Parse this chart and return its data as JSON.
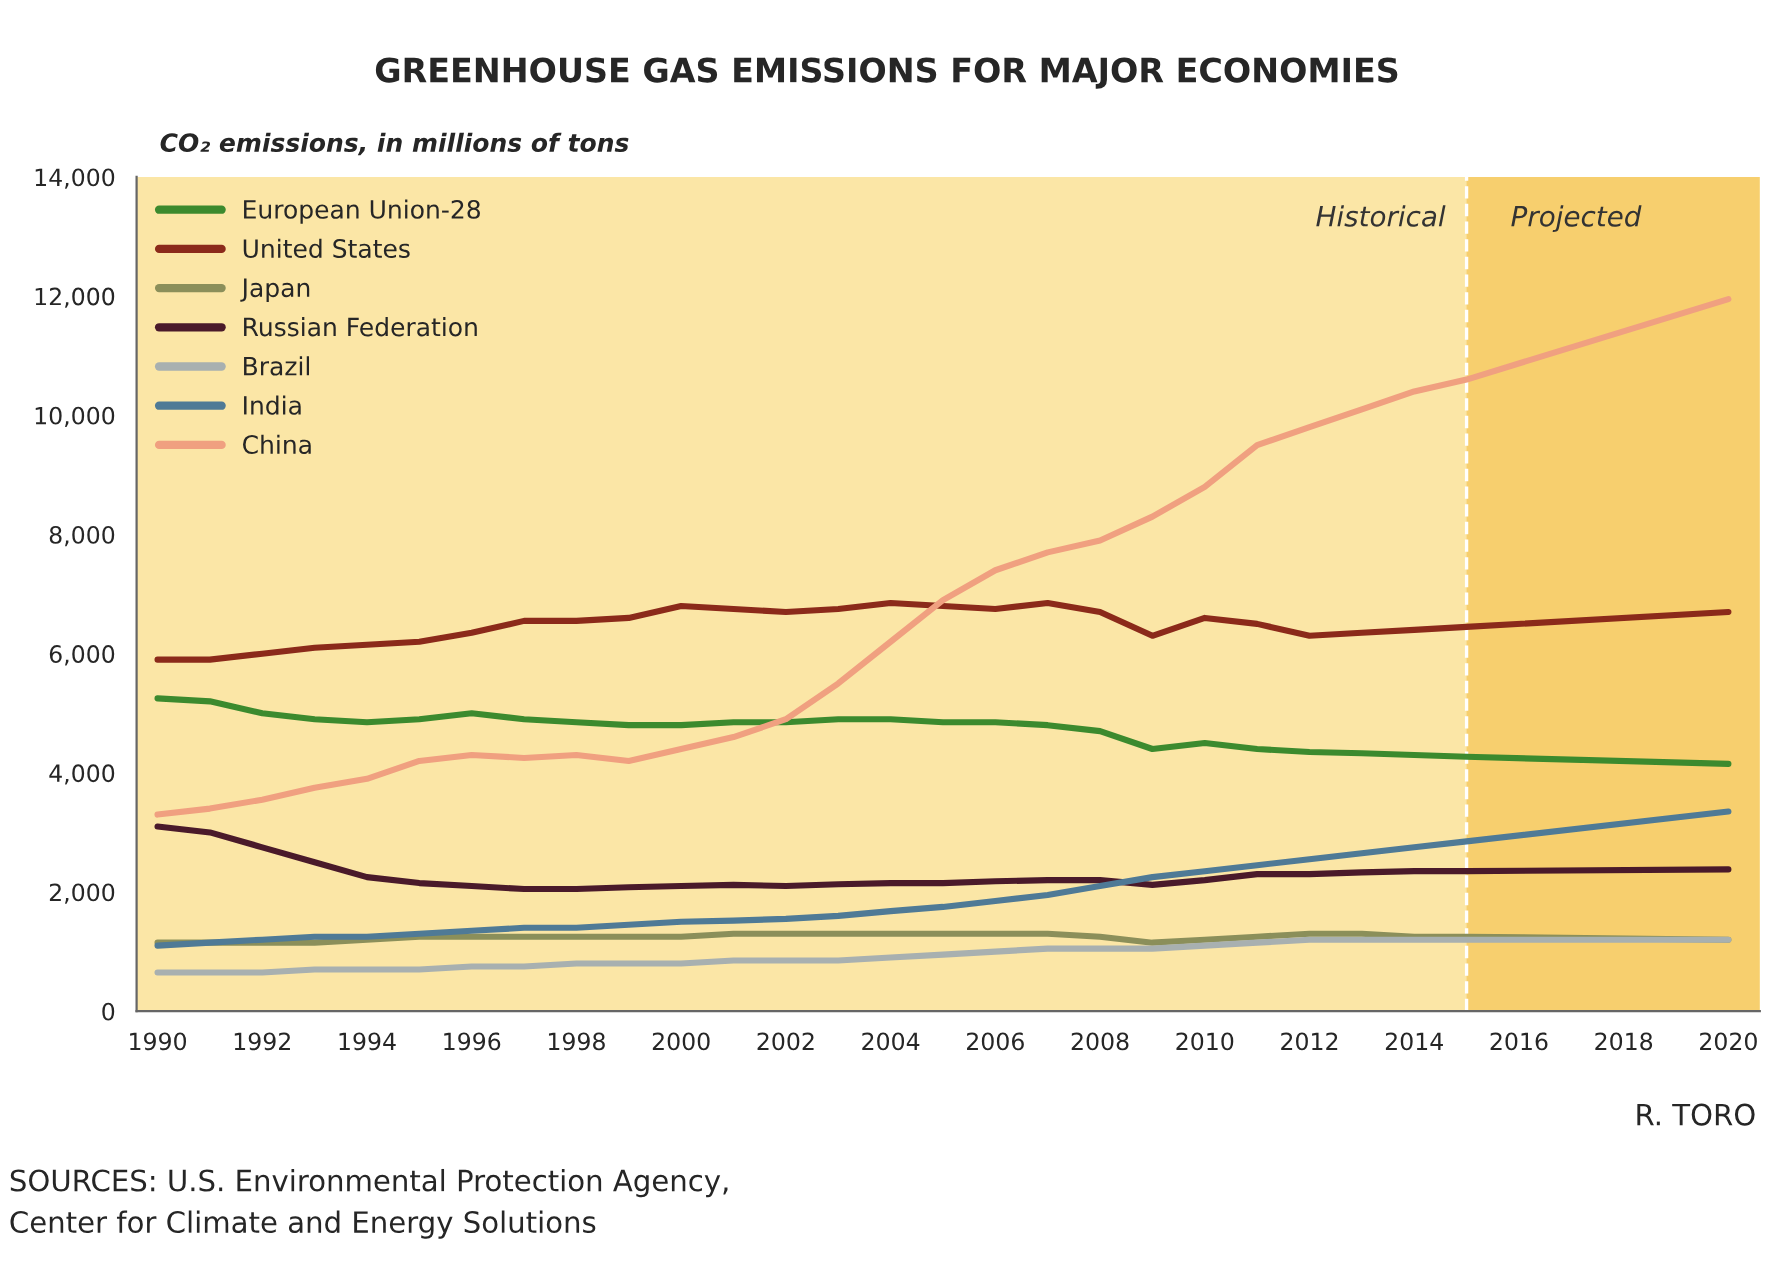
{
  "chart_data": {
    "type": "line",
    "title": "GREENHOUSE GAS EMISSIONS FOR MAJOR ECONOMIES",
    "ylabel": "CO₂ emissions, in millions of tons",
    "x": [
      1990,
      1991,
      1992,
      1993,
      1994,
      1995,
      1996,
      1997,
      1998,
      1999,
      2000,
      2001,
      2002,
      2003,
      2004,
      2005,
      2006,
      2007,
      2008,
      2009,
      2010,
      2011,
      2012,
      2013,
      2014,
      2015,
      2020
    ],
    "series": [
      {
        "name": "European Union-28",
        "color": "#3c8a2e",
        "values": [
          5250,
          5200,
          5000,
          4900,
          4850,
          4900,
          5000,
          4900,
          4850,
          4800,
          4800,
          4850,
          4850,
          4900,
          4900,
          4850,
          4850,
          4800,
          4700,
          4400,
          4500,
          4400,
          4350,
          4330,
          4300,
          4270,
          4150
        ]
      },
      {
        "name": "United States",
        "color": "#8b2a1a",
        "values": [
          5900,
          5900,
          6000,
          6100,
          6150,
          6200,
          6350,
          6550,
          6550,
          6600,
          6800,
          6750,
          6700,
          6750,
          6850,
          6800,
          6750,
          6850,
          6700,
          6300,
          6600,
          6500,
          6300,
          6350,
          6400,
          6450,
          6700
        ]
      },
      {
        "name": "Japan",
        "color": "#8b8f5a",
        "values": [
          1150,
          1150,
          1150,
          1150,
          1200,
          1250,
          1250,
          1250,
          1250,
          1250,
          1250,
          1300,
          1300,
          1300,
          1300,
          1300,
          1300,
          1300,
          1250,
          1150,
          1200,
          1250,
          1300,
          1300,
          1250,
          1250,
          1200
        ]
      },
      {
        "name": "Russian Federation",
        "color": "#4a1a2a",
        "values": [
          3100,
          3000,
          2750,
          2500,
          2250,
          2150,
          2100,
          2050,
          2050,
          2080,
          2100,
          2120,
          2100,
          2130,
          2150,
          2150,
          2180,
          2200,
          2200,
          2120,
          2200,
          2300,
          2300,
          2330,
          2350,
          2350,
          2380
        ]
      },
      {
        "name": "Brazil",
        "color": "#a8b0b0",
        "values": [
          650,
          650,
          650,
          700,
          700,
          700,
          750,
          750,
          800,
          800,
          800,
          850,
          850,
          850,
          900,
          950,
          1000,
          1050,
          1050,
          1050,
          1100,
          1150,
          1200,
          1200,
          1200,
          1200,
          1200
        ]
      },
      {
        "name": "India",
        "color": "#4f7a96",
        "values": [
          1100,
          1150,
          1200,
          1250,
          1250,
          1300,
          1350,
          1400,
          1400,
          1450,
          1500,
          1520,
          1550,
          1600,
          1680,
          1750,
          1850,
          1950,
          2100,
          2250,
          2350,
          2450,
          2550,
          2650,
          2750,
          2850,
          3350
        ]
      },
      {
        "name": "China",
        "color": "#f0a080",
        "values": [
          3300,
          3400,
          3550,
          3750,
          3900,
          4200,
          4300,
          4250,
          4300,
          4200,
          4400,
          4600,
          4900,
          5500,
          6200,
          6900,
          7400,
          7700,
          7900,
          8300,
          8800,
          9500,
          9800,
          10100,
          10400,
          10600,
          11950
        ]
      }
    ],
    "xlim": [
      1989.6,
      2020.6
    ],
    "xticks": [
      1990,
      1992,
      1994,
      1996,
      1998,
      2000,
      2002,
      2004,
      2006,
      2008,
      2010,
      2012,
      2014,
      2016,
      2018,
      2020
    ],
    "ylim": [
      0,
      14000
    ],
    "yticks": [
      0,
      {
        "value": 2000,
        "label": "2,000"
      },
      {
        "value": 4000,
        "label": "4,000"
      },
      {
        "value": 6000,
        "label": "6,000"
      },
      {
        "value": 8000,
        "label": "8,000"
      },
      {
        "value": 10000,
        "label": "10,000"
      },
      {
        "value": 12000,
        "label": "12,000"
      },
      {
        "value": 14000,
        "label": "14,000"
      }
    ],
    "ref_lines": [
      {
        "axis": "x",
        "value": 2015,
        "label": "Historical",
        "color": "#ffffff",
        "line_style": "dashed"
      }
    ],
    "bands": [
      {
        "axis": "x",
        "from": 2015,
        "to": 2020.6,
        "label": "Projected",
        "color": "#f7cf6e"
      }
    ],
    "annotations": [
      "SOURCES: U.S. Environmental Protection Agency,\nCenter for Climate and Energy Solutions",
      "R. TORO"
    ],
    "grid": false,
    "legend": "top left",
    "marker": "none",
    "line_style": "solid"
  }
}
